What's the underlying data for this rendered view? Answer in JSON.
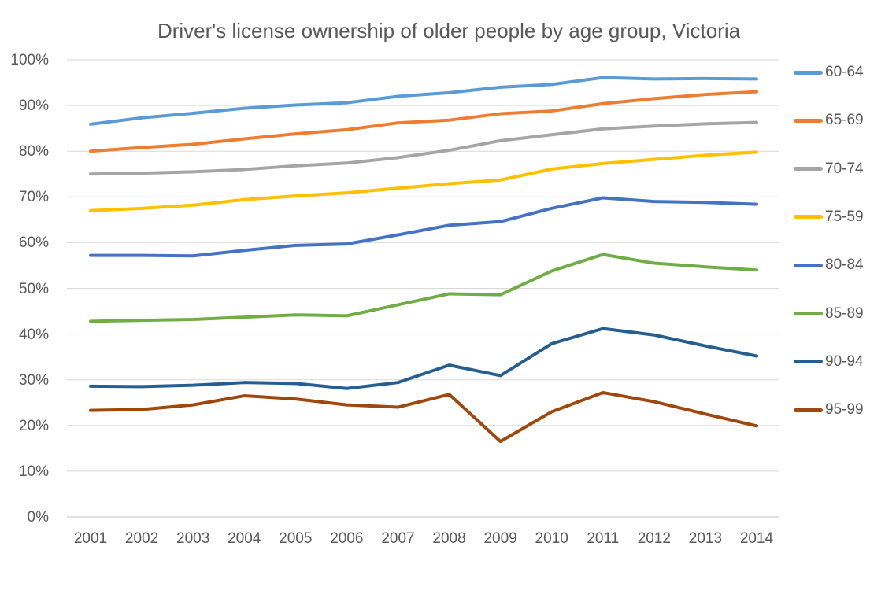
{
  "chart_data": {
    "type": "line",
    "title": "Driver's license ownership of older people by age group, Victoria",
    "x": [
      2001,
      2002,
      2003,
      2004,
      2005,
      2006,
      2007,
      2008,
      2009,
      2010,
      2011,
      2012,
      2013,
      2014
    ],
    "xlabel": "",
    "ylabel": "",
    "ylim": [
      0,
      100
    ],
    "y_ticks": [
      "0%",
      "10%",
      "20%",
      "30%",
      "40%",
      "50%",
      "60%",
      "70%",
      "80%",
      "90%",
      "100%"
    ],
    "grid": "horizontal-only",
    "legend_position": "right",
    "series": [
      {
        "name": "60-64",
        "color": "#5B9BD5",
        "values": [
          85.9,
          87.3,
          88.3,
          89.4,
          90.1,
          90.6,
          92.0,
          92.8,
          94.0,
          94.6,
          96.1,
          95.8,
          95.9,
          95.8
        ]
      },
      {
        "name": "65-69",
        "color": "#ED7D31",
        "values": [
          80.0,
          80.8,
          81.5,
          82.7,
          83.8,
          84.7,
          86.2,
          86.8,
          88.2,
          88.8,
          90.4,
          91.5,
          92.4,
          93.0
        ]
      },
      {
        "name": "70-74",
        "color": "#A5A5A5",
        "values": [
          75.0,
          75.2,
          75.5,
          76.0,
          76.8,
          77.4,
          78.6,
          80.2,
          82.3,
          83.6,
          84.9,
          85.5,
          86.0,
          86.3
        ]
      },
      {
        "name": "75-59",
        "color": "#FFC000",
        "values": [
          67.0,
          67.5,
          68.2,
          69.4,
          70.2,
          70.9,
          71.9,
          72.9,
          73.7,
          76.1,
          77.3,
          78.2,
          79.1,
          79.8
        ]
      },
      {
        "name": "80-84",
        "color": "#4472C4",
        "values": [
          57.2,
          57.2,
          57.1,
          58.3,
          59.4,
          59.7,
          61.7,
          63.8,
          64.6,
          67.5,
          69.8,
          69.0,
          68.8,
          68.4
        ]
      },
      {
        "name": "85-89",
        "color": "#70AD47",
        "values": [
          42.8,
          43.0,
          43.2,
          43.7,
          44.2,
          44.0,
          46.4,
          48.8,
          48.6,
          53.8,
          57.4,
          55.5,
          54.7,
          54.0
        ]
      },
      {
        "name": "90-94",
        "color": "#255E91",
        "values": [
          28.6,
          28.5,
          28.8,
          29.4,
          29.2,
          28.1,
          29.4,
          33.2,
          30.9,
          37.9,
          41.2,
          39.8,
          37.4,
          35.2
        ]
      },
      {
        "name": "95-99",
        "color": "#9E480E",
        "values": [
          23.3,
          23.5,
          24.5,
          26.5,
          25.8,
          24.5,
          24.0,
          26.8,
          16.5,
          23.0,
          27.2,
          25.2,
          22.5,
          19.9
        ]
      }
    ]
  },
  "colors": {
    "gridline": "#D9D9D9",
    "axis_line": "#BFBFBF",
    "text": "#595959",
    "background": "#FFFFFF"
  }
}
